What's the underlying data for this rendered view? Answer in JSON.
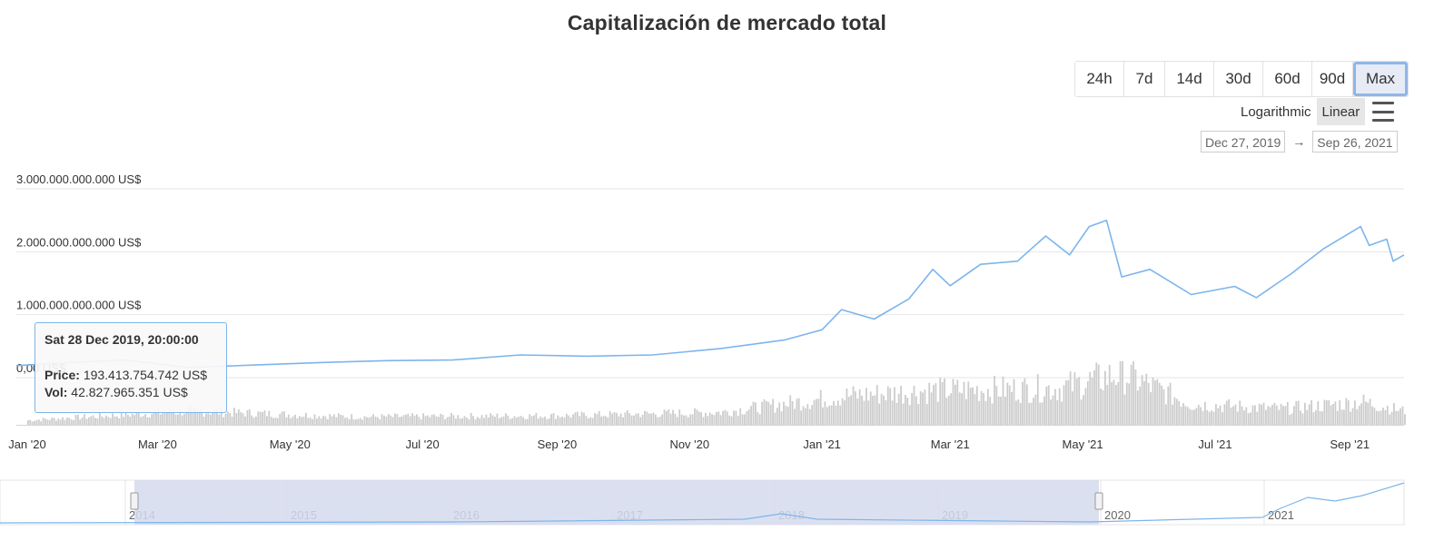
{
  "title": "Capitalización de mercado total",
  "range_buttons": [
    "24h",
    "7d",
    "14d",
    "30d",
    "60d",
    "90d",
    "Max"
  ],
  "range_active": "Max",
  "scale": {
    "log_label": "Logarithmic",
    "linear_label": "Linear",
    "active": "Linear"
  },
  "date_range": {
    "from": "Dec 27, 2019",
    "arrow": "→",
    "to": "Sep 26, 2021"
  },
  "tooltip": {
    "date": "Sat 28 Dec 2019, 20:00:00",
    "price_label": "Price:",
    "price_value": "193.413.754.742 US$",
    "vol_label": "Vol:",
    "vol_value": "42.827.965.351 US$"
  },
  "colors": {
    "line": "#7cb5ec",
    "volume": "#cccccc",
    "navigator_mask": "#d5dbed",
    "grid": "#e6e6e6"
  },
  "chart_data": {
    "type": "line",
    "title": "Capitalización de mercado total",
    "x_range": [
      "2019-12-27",
      "2021-09-26"
    ],
    "ylim": [
      0,
      3000000000000
    ],
    "y_ticks": [
      {
        "value": 0,
        "label": "0,00 US$"
      },
      {
        "value": 1000000000000,
        "label": "1.000.000.000.000 US$"
      },
      {
        "value": 2000000000000,
        "label": "2.000.000.000.000 US$"
      },
      {
        "value": 3000000000000,
        "label": "3.000.000.000.000 US$"
      }
    ],
    "x_ticks": [
      {
        "date": "2020-01-01",
        "label": "Jan '20"
      },
      {
        "date": "2020-03-01",
        "label": "Mar '20"
      },
      {
        "date": "2020-05-01",
        "label": "May '20"
      },
      {
        "date": "2020-07-01",
        "label": "Jul '20"
      },
      {
        "date": "2020-09-01",
        "label": "Sep '20"
      },
      {
        "date": "2020-11-01",
        "label": "Nov '20"
      },
      {
        "date": "2021-01-01",
        "label": "Jan '21"
      },
      {
        "date": "2021-03-01",
        "label": "Mar '21"
      },
      {
        "date": "2021-05-01",
        "label": "May '21"
      },
      {
        "date": "2021-07-01",
        "label": "Jul '21"
      },
      {
        "date": "2021-09-01",
        "label": "Sep '21"
      }
    ],
    "grid": true,
    "series": [
      {
        "values_unit": "US$",
        "points": [
          [
            "2019-12-27",
            190000000000
          ],
          [
            "2020-01-15",
            230000000000
          ],
          [
            "2020-02-15",
            280000000000
          ],
          [
            "2020-03-15",
            160000000000
          ],
          [
            "2020-04-15",
            200000000000
          ],
          [
            "2020-05-15",
            240000000000
          ],
          [
            "2020-06-15",
            270000000000
          ],
          [
            "2020-07-15",
            280000000000
          ],
          [
            "2020-08-15",
            360000000000
          ],
          [
            "2020-09-15",
            340000000000
          ],
          [
            "2020-10-15",
            360000000000
          ],
          [
            "2020-11-15",
            460000000000
          ],
          [
            "2020-12-15",
            600000000000
          ],
          [
            "2021-01-01",
            760000000000
          ],
          [
            "2021-01-10",
            1080000000000
          ],
          [
            "2021-01-25",
            930000000000
          ],
          [
            "2021-02-10",
            1250000000000
          ],
          [
            "2021-02-21",
            1720000000000
          ],
          [
            "2021-03-01",
            1460000000000
          ],
          [
            "2021-03-15",
            1800000000000
          ],
          [
            "2021-04-01",
            1850000000000
          ],
          [
            "2021-04-14",
            2250000000000
          ],
          [
            "2021-04-25",
            1950000000000
          ],
          [
            "2021-05-04",
            2400000000000
          ],
          [
            "2021-05-12",
            2500000000000
          ],
          [
            "2021-05-19",
            1600000000000
          ],
          [
            "2021-06-01",
            1720000000000
          ],
          [
            "2021-06-20",
            1320000000000
          ],
          [
            "2021-07-10",
            1450000000000
          ],
          [
            "2021-07-20",
            1270000000000
          ],
          [
            "2021-08-05",
            1650000000000
          ],
          [
            "2021-08-20",
            2050000000000
          ],
          [
            "2021-09-06",
            2400000000000
          ],
          [
            "2021-09-10",
            2100000000000
          ],
          [
            "2021-09-18",
            2200000000000
          ],
          [
            "2021-09-21",
            1850000000000
          ],
          [
            "2021-09-26",
            1950000000000
          ]
        ]
      }
    ],
    "volume": {
      "unit": "US$",
      "points": [
        [
          "2020-01-01",
          40000000000
        ],
        [
          "2020-03-15",
          120000000000
        ],
        [
          "2020-06-01",
          70000000000
        ],
        [
          "2020-09-01",
          80000000000
        ],
        [
          "2020-11-15",
          110000000000
        ],
        [
          "2021-01-10",
          250000000000
        ],
        [
          "2021-02-20",
          300000000000
        ],
        [
          "2021-04-20",
          320000000000
        ],
        [
          "2021-05-19",
          450000000000
        ],
        [
          "2021-06-20",
          180000000000
        ],
        [
          "2021-08-01",
          140000000000
        ],
        [
          "2021-09-07",
          200000000000
        ],
        [
          "2021-09-26",
          120000000000
        ]
      ]
    },
    "navigator": {
      "year_labels": [
        "2014",
        "2015",
        "2016",
        "2017",
        "2018",
        "2019",
        "2020",
        "2021"
      ]
    }
  }
}
